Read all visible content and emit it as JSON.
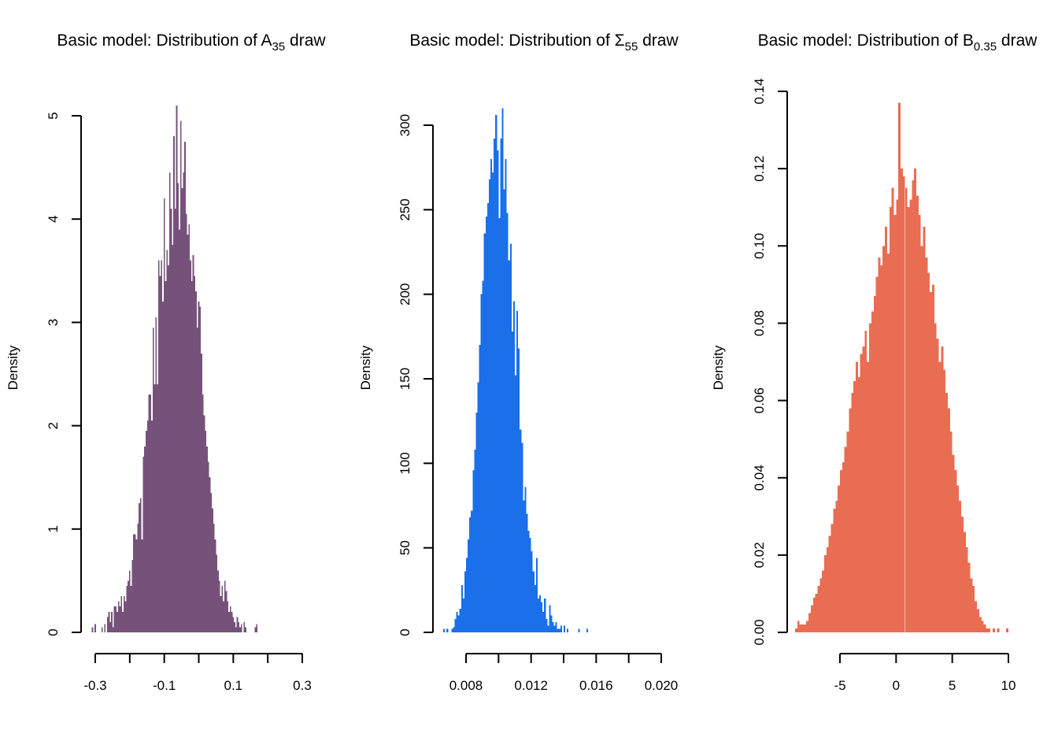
{
  "colors": [
    "#76527a",
    "#1b6fe8",
    "#e86d52"
  ],
  "chart_data": [
    {
      "type": "bar",
      "title": {
        "main": "Basic model: Distribution of A",
        "sub": "35",
        "tail": " draw"
      },
      "xlabel": "",
      "ylabel": "Density",
      "xlim": [
        -0.3,
        0.3
      ],
      "ylim": [
        0,
        5
      ],
      "x_ticks": [
        -0.3,
        -0.2,
        -0.1,
        0.0,
        0.1,
        0.2,
        0.3
      ],
      "x_tick_labels": [
        "-0.3",
        "",
        "-0.1",
        "",
        "0.1",
        "",
        "0.3"
      ],
      "y_ticks": [
        0,
        1,
        2,
        3,
        4,
        5
      ],
      "y_tick_labels": [
        "0",
        "1",
        "2",
        "3",
        "4",
        "5"
      ],
      "bin_start": -0.31,
      "bin_width": 0.004,
      "values": [
        0.05,
        0.0,
        0.08,
        0.0,
        0.0,
        0.0,
        0.0,
        0.05,
        0.0,
        0.08,
        0.0,
        0.15,
        0.2,
        0.1,
        0.2,
        0.05,
        0.25,
        0.25,
        0.2,
        0.3,
        0.25,
        0.35,
        0.2,
        0.35,
        0.3,
        0.45,
        0.5,
        0.6,
        0.45,
        0.7,
        0.95,
        0.95,
        0.9,
        1.05,
        1.25,
        1.3,
        0.9,
        1.7,
        1.8,
        1.95,
        2.05,
        2.3,
        2.3,
        2.05,
        2.95,
        2.4,
        3.05,
        2.4,
        3.6,
        3.45,
        3.6,
        3.2,
        4.2,
        3.4,
        3.7,
        3.55,
        4.45,
        4.1,
        3.75,
        4.8,
        4.1,
        5.1,
        4.35,
        3.9,
        4.95,
        4.3,
        4.45,
        4.75,
        4.05,
        3.85,
        3.95,
        3.6,
        3.4,
        3.65,
        3.45,
        3.3,
        2.95,
        3.2,
        3.15,
        2.7,
        2.3,
        2.1,
        1.95,
        1.8,
        1.65,
        1.5,
        1.35,
        1.2,
        1.05,
        0.9,
        0.75,
        0.6,
        0.5,
        0.35,
        0.45,
        0.3,
        0.5,
        0.4,
        0.3,
        0.2,
        0.25,
        0.2,
        0.15,
        0.1,
        0.05,
        0.15,
        0.1,
        0.05,
        0.08,
        0.0,
        0.1,
        0.05,
        0.0,
        0.0,
        0.0,
        0.0,
        0.0,
        0.0,
        0.05,
        0.08
      ]
    },
    {
      "type": "bar",
      "title": {
        "main": "Basic model: Distribution of Σ",
        "sub": "55",
        "tail": " draw"
      },
      "xlabel": "",
      "ylabel": "Density",
      "xlim": [
        0.006,
        0.0205
      ],
      "ylim": [
        0,
        300
      ],
      "x_ticks": [
        0.008,
        0.01,
        0.012,
        0.014,
        0.016,
        0.018,
        0.02
      ],
      "x_tick_labels": [
        "0.008",
        "",
        "0.012",
        "",
        "0.016",
        "",
        "0.020"
      ],
      "y_ticks": [
        0,
        50,
        100,
        150,
        200,
        250,
        300
      ],
      "y_tick_labels": [
        "0",
        "50",
        "100",
        "150",
        "200",
        "250",
        "300"
      ],
      "bin_start": 0.0066,
      "bin_width": 0.0001,
      "values": [
        2,
        0,
        2,
        0,
        0,
        2,
        3,
        8,
        12,
        10,
        14,
        28,
        20,
        36,
        44,
        55,
        68,
        72,
        96,
        108,
        130,
        148,
        170,
        200,
        208,
        236,
        246,
        254,
        268,
        280,
        272,
        292,
        306,
        285,
        245,
        292,
        310,
        262,
        280,
        248,
        220,
        230,
        178,
        196,
        152,
        190,
        168,
        120,
        112,
        78,
        86,
        70,
        60,
        56,
        48,
        36,
        28,
        44,
        20,
        22,
        18,
        12,
        20,
        8,
        4,
        16,
        10,
        6,
        4,
        6,
        2,
        2,
        4,
        0,
        4,
        0,
        2,
        0,
        0,
        0,
        0,
        0,
        0,
        2,
        0,
        0,
        0,
        0,
        2
      ]
    },
    {
      "type": "bar",
      "title": {
        "main": "Basic model: Distribution of B",
        "sub": "0.35",
        "tail": " draw"
      },
      "xlabel": "",
      "ylabel": "Density",
      "xlim": [
        -9,
        10
      ],
      "ylim": [
        0,
        0.14
      ],
      "x_ticks": [
        -5,
        0,
        5,
        10
      ],
      "x_tick_labels": [
        "-5",
        "0",
        "5",
        "10"
      ],
      "y_ticks": [
        0.0,
        0.02,
        0.04,
        0.06,
        0.08,
        0.1,
        0.12,
        0.14
      ],
      "y_tick_labels": [
        "0.00",
        "0.02",
        "0.04",
        "0.06",
        "0.08",
        "0.10",
        "0.12",
        "0.14"
      ],
      "bin_start": -9.0,
      "bin_width": 0.2,
      "values": [
        0.001,
        0.003,
        0.002,
        0.002,
        0.002,
        0.003,
        0.005,
        0.007,
        0.009,
        0.01,
        0.012,
        0.014,
        0.016,
        0.02,
        0.022,
        0.025,
        0.028,
        0.032,
        0.034,
        0.038,
        0.042,
        0.044,
        0.048,
        0.052,
        0.058,
        0.062,
        0.065,
        0.07,
        0.066,
        0.072,
        0.074,
        0.078,
        0.07,
        0.08,
        0.083,
        0.087,
        0.092,
        0.097,
        0.095,
        0.1,
        0.105,
        0.098,
        0.11,
        0.115,
        0.108,
        0.112,
        0.137,
        0.12,
        0.118,
        0.115,
        0.11,
        0.112,
        0.117,
        0.12,
        0.113,
        0.108,
        0.1,
        0.105,
        0.097,
        0.093,
        0.088,
        0.09,
        0.08,
        0.076,
        0.07,
        0.074,
        0.068,
        0.062,
        0.058,
        0.052,
        0.046,
        0.042,
        0.038,
        0.034,
        0.03,
        0.026,
        0.022,
        0.018,
        0.014,
        0.012,
        0.008,
        0.006,
        0.004,
        0.003,
        0.002,
        0.001,
        0.001,
        0.0,
        0.001,
        0.0,
        0.001,
        0.0,
        0.0,
        0.0,
        0.001
      ]
    }
  ]
}
